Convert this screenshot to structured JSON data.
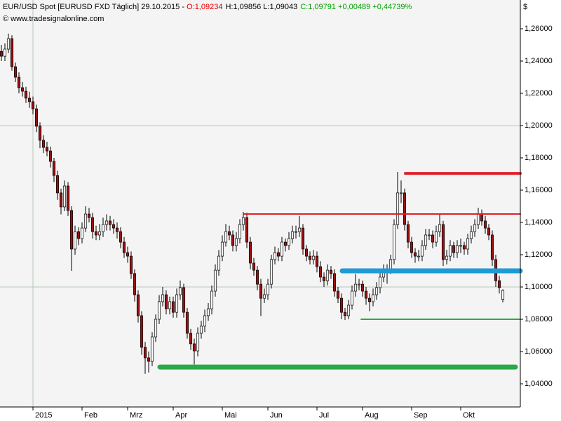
{
  "chart_data": {
    "type": "candlestick",
    "header": {
      "instrument": "EUR/USD Spot [EURUSD FXD  Täglich] 29.10.2015 - ",
      "open": "O:1,09234",
      "high_low": "H:1,09856 L:1,09043",
      "close": "C:1,09791 +0,00489 +0,44739%"
    },
    "copyright": "© www.tradesignalonline.com",
    "y_axis_label": "$",
    "categories": [
      null,
      null,
      null,
      null,
      null,
      null,
      null,
      null,
      null,
      "2015",
      null,
      null,
      null,
      null,
      null,
      null,
      null,
      null,
      null,
      null,
      null,
      null,
      null,
      "Feb",
      null,
      null,
      null,
      null,
      null,
      null,
      null,
      null,
      null,
      null,
      null,
      null,
      "Mrz",
      null,
      null,
      null,
      null,
      null,
      null,
      null,
      null,
      null,
      null,
      null,
      null,
      "Apr",
      null,
      null,
      null,
      null,
      null,
      null,
      null,
      null,
      null,
      null,
      null,
      null,
      null,
      "Mai",
      null,
      null,
      null,
      null,
      null,
      null,
      null,
      null,
      null,
      null,
      null,
      null,
      "Jun",
      null,
      null,
      null,
      null,
      null,
      null,
      null,
      null,
      null,
      null,
      null,
      null,
      null,
      "Jul",
      null,
      null,
      null,
      null,
      null,
      null,
      null,
      null,
      null,
      null,
      null,
      null,
      "Aug",
      null,
      null,
      null,
      null,
      null,
      null,
      null,
      null,
      null,
      null,
      null,
      null,
      null,
      "Sep",
      null,
      null,
      null,
      null,
      null,
      null,
      null,
      null,
      null,
      null,
      null,
      null,
      null,
      "Okt",
      null,
      null,
      null,
      null,
      null,
      null,
      null,
      null,
      null,
      null,
      null,
      null
    ],
    "ohlc": [
      [
        1.246,
        1.25,
        1.24,
        1.243
      ],
      [
        1.243,
        1.251,
        1.24,
        1.2474
      ],
      [
        1.2474,
        1.257,
        1.245,
        1.2539
      ],
      [
        1.2539,
        1.256,
        1.234,
        1.2365
      ],
      [
        1.2365,
        1.239,
        1.227,
        1.23
      ],
      [
        1.23,
        1.233,
        1.22,
        1.2235
      ],
      [
        1.2235,
        1.227,
        1.218,
        1.2213
      ],
      [
        1.2213,
        1.224,
        1.214,
        1.217
      ],
      [
        1.217,
        1.221,
        1.211,
        1.2148
      ],
      [
        1.2148,
        1.218,
        1.207,
        1.2104
      ],
      [
        1.2104,
        1.213,
        1.196,
        1.1996
      ],
      [
        1.1996,
        1.202,
        1.186,
        1.1909
      ],
      [
        1.1909,
        1.194,
        1.183,
        1.1865
      ],
      [
        1.1865,
        1.19,
        1.181,
        1.1843
      ],
      [
        1.1843,
        1.187,
        1.174,
        1.1778
      ],
      [
        1.1778,
        1.18,
        1.165,
        1.1691
      ],
      [
        1.1691,
        1.172,
        1.154,
        1.1583
      ],
      [
        1.1583,
        1.161,
        1.145,
        1.1496
      ],
      [
        1.1496,
        1.166,
        1.147,
        1.1626
      ],
      [
        1.1626,
        1.165,
        1.144,
        1.1474
      ],
      [
        1.1474,
        1.15,
        1.11,
        1.1235
      ],
      [
        1.1235,
        1.138,
        1.12,
        1.1343
      ],
      [
        1.1343,
        1.137,
        1.126,
        1.13
      ],
      [
        1.13,
        1.14,
        1.127,
        1.1365
      ],
      [
        1.1365,
        1.15,
        1.134,
        1.1452
      ],
      [
        1.1452,
        1.149,
        1.14,
        1.143
      ],
      [
        1.143,
        1.146,
        1.13,
        1.1343
      ],
      [
        1.1343,
        1.138,
        1.129,
        1.1322
      ],
      [
        1.1322,
        1.139,
        1.129,
        1.1343
      ],
      [
        1.1343,
        1.143,
        1.131,
        1.1387
      ],
      [
        1.1387,
        1.145,
        1.135,
        1.1409
      ],
      [
        1.1409,
        1.144,
        1.135,
        1.1387
      ],
      [
        1.1387,
        1.142,
        1.133,
        1.1365
      ],
      [
        1.1365,
        1.14,
        1.13,
        1.1343
      ],
      [
        1.1343,
        1.137,
        1.124,
        1.1278
      ],
      [
        1.1278,
        1.131,
        1.118,
        1.1213
      ],
      [
        1.1213,
        1.125,
        1.115,
        1.1191
      ],
      [
        1.1191,
        1.122,
        1.105,
        1.1083
      ],
      [
        1.1083,
        1.111,
        1.091,
        1.0952
      ],
      [
        1.0952,
        1.098,
        1.078,
        1.0822
      ],
      [
        1.0822,
        1.085,
        1.058,
        1.0626
      ],
      [
        1.0626,
        1.066,
        1.0462,
        1.0561
      ],
      [
        1.0561,
        1.06,
        1.047,
        1.0539
      ],
      [
        1.0539,
        1.072,
        1.051,
        1.0691
      ],
      [
        1.0691,
        1.083,
        1.066,
        1.08
      ],
      [
        1.08,
        1.095,
        1.077,
        1.0909
      ],
      [
        1.0909,
        1.1,
        1.088,
        1.0952
      ],
      [
        1.0952,
        1.098,
        1.083,
        1.0865
      ],
      [
        1.0865,
        1.094,
        1.083,
        1.0909
      ],
      [
        1.0909,
        1.094,
        1.081,
        1.0843
      ],
      [
        1.0843,
        1.099,
        1.081,
        1.0952
      ],
      [
        1.0952,
        1.104,
        1.092,
        1.0996
      ],
      [
        1.0996,
        1.102,
        1.081,
        1.0843
      ],
      [
        1.0843,
        1.087,
        1.068,
        1.0713
      ],
      [
        1.0713,
        1.074,
        1.061,
        1.0648
      ],
      [
        1.0648,
        1.068,
        1.052,
        1.0604
      ],
      [
        1.0604,
        1.075,
        1.057,
        1.0713
      ],
      [
        1.0713,
        1.079,
        1.068,
        1.0757
      ],
      [
        1.0757,
        1.086,
        1.072,
        1.0822
      ],
      [
        1.0822,
        1.09,
        1.079,
        1.0865
      ],
      [
        1.0865,
        1.101,
        1.083,
        1.0974
      ],
      [
        1.0974,
        1.114,
        1.094,
        1.1104
      ],
      [
        1.1104,
        1.123,
        1.107,
        1.1191
      ],
      [
        1.1191,
        1.132,
        1.116,
        1.1278
      ],
      [
        1.1278,
        1.139,
        1.125,
        1.1343
      ],
      [
        1.1343,
        1.138,
        1.129,
        1.1322
      ],
      [
        1.1322,
        1.135,
        1.122,
        1.1257
      ],
      [
        1.1257,
        1.134,
        1.122,
        1.13
      ],
      [
        1.13,
        1.142,
        1.127,
        1.1387
      ],
      [
        1.1387,
        1.1465,
        1.135,
        1.143
      ],
      [
        1.143,
        1.146,
        1.124,
        1.1278
      ],
      [
        1.1278,
        1.131,
        1.111,
        1.1148
      ],
      [
        1.1148,
        1.118,
        1.107,
        1.1104
      ],
      [
        1.1104,
        1.113,
        1.098,
        1.1017
      ],
      [
        1.1017,
        1.105,
        1.082,
        1.093
      ],
      [
        1.093,
        1.099,
        1.09,
        1.0952
      ],
      [
        1.0952,
        1.105,
        1.092,
        1.1017
      ],
      [
        1.1017,
        1.12,
        1.099,
        1.117
      ],
      [
        1.117,
        1.125,
        1.114,
        1.1213
      ],
      [
        1.1213,
        1.124,
        1.116,
        1.1191
      ],
      [
        1.1191,
        1.131,
        1.116,
        1.1278
      ],
      [
        1.1278,
        1.13,
        1.122,
        1.1257
      ],
      [
        1.1257,
        1.134,
        1.123,
        1.13
      ],
      [
        1.13,
        1.138,
        1.127,
        1.1343
      ],
      [
        1.1343,
        1.138,
        1.13,
        1.1343
      ],
      [
        1.1343,
        1.144,
        1.131,
        1.1365
      ],
      [
        1.1365,
        1.139,
        1.12,
        1.1235
      ],
      [
        1.1235,
        1.126,
        1.116,
        1.1191
      ],
      [
        1.1191,
        1.122,
        1.114,
        1.117
      ],
      [
        1.117,
        1.123,
        1.114,
        1.1191
      ],
      [
        1.1191,
        1.122,
        1.109,
        1.1126
      ],
      [
        1.1126,
        1.116,
        1.103,
        1.1061
      ],
      [
        1.1061,
        1.109,
        1.1,
        1.1039
      ],
      [
        1.1039,
        1.114,
        1.101,
        1.1104
      ],
      [
        1.1104,
        1.113,
        1.105,
        1.1083
      ],
      [
        1.1083,
        1.111,
        1.094,
        1.0974
      ],
      [
        1.0974,
        1.1,
        1.09,
        1.093
      ],
      [
        1.093,
        1.096,
        1.08,
        1.0843
      ],
      [
        1.0843,
        1.087,
        1.0795,
        1.0822
      ],
      [
        1.0822,
        1.092,
        1.08,
        1.0887
      ],
      [
        1.0887,
        1.101,
        1.086,
        1.0974
      ],
      [
        1.0974,
        1.108,
        1.094,
        1.1017
      ],
      [
        1.1017,
        1.105,
        1.098,
        1.1017
      ],
      [
        1.1017,
        1.104,
        1.094,
        1.0974
      ],
      [
        1.0974,
        1.1,
        1.089,
        1.093
      ],
      [
        1.093,
        1.096,
        1.085,
        1.0909
      ],
      [
        1.0909,
        1.099,
        1.088,
        1.0952
      ],
      [
        1.0952,
        1.103,
        1.092,
        1.0996
      ],
      [
        1.0996,
        1.109,
        1.096,
        1.1061
      ],
      [
        1.1061,
        1.114,
        1.103,
        1.1104
      ],
      [
        1.1104,
        1.114,
        1.102,
        1.1104
      ],
      [
        1.1104,
        1.12,
        1.108,
        1.117
      ],
      [
        1.117,
        1.142,
        1.114,
        1.1387
      ],
      [
        1.1387,
        1.1713,
        1.136,
        1.1583
      ],
      [
        1.1583,
        1.166,
        1.152,
        1.1583
      ],
      [
        1.1583,
        1.161,
        1.135,
        1.1387
      ],
      [
        1.1387,
        1.141,
        1.124,
        1.1278
      ],
      [
        1.1278,
        1.131,
        1.118,
        1.1213
      ],
      [
        1.1213,
        1.124,
        1.115,
        1.1191
      ],
      [
        1.1191,
        1.123,
        1.116,
        1.1191
      ],
      [
        1.1191,
        1.129,
        1.116,
        1.1257
      ],
      [
        1.1257,
        1.136,
        1.123,
        1.1322
      ],
      [
        1.1322,
        1.136,
        1.129,
        1.1322
      ],
      [
        1.1322,
        1.135,
        1.124,
        1.1278
      ],
      [
        1.1278,
        1.138,
        1.125,
        1.1343
      ],
      [
        1.1343,
        1.145,
        1.131,
        1.1387
      ],
      [
        1.1387,
        1.141,
        1.113,
        1.117
      ],
      [
        1.117,
        1.123,
        1.114,
        1.1191
      ],
      [
        1.1191,
        1.129,
        1.116,
        1.1257
      ],
      [
        1.1257,
        1.128,
        1.118,
        1.1213
      ],
      [
        1.1213,
        1.129,
        1.118,
        1.1257
      ],
      [
        1.1257,
        1.13,
        1.121,
        1.1257
      ],
      [
        1.1257,
        1.128,
        1.12,
        1.1235
      ],
      [
        1.1235,
        1.133,
        1.12,
        1.13
      ],
      [
        1.13,
        1.138,
        1.127,
        1.1343
      ],
      [
        1.1343,
        1.142,
        1.131,
        1.1387
      ],
      [
        1.1387,
        1.149,
        1.136,
        1.1452
      ],
      [
        1.1452,
        1.148,
        1.138,
        1.1409
      ],
      [
        1.1409,
        1.144,
        1.133,
        1.1365
      ],
      [
        1.1365,
        1.139,
        1.129,
        1.1322
      ],
      [
        1.1322,
        1.135,
        1.113,
        1.117
      ],
      [
        1.117,
        1.12,
        1.1,
        1.1039
      ],
      [
        1.1039,
        1.107,
        1.096,
        1.0996
      ],
      [
        1.09234,
        1.09856,
        1.09043,
        1.09791
      ]
    ],
    "up_color": "#ffffff",
    "down_color": "#9b1010",
    "xlim": [
      -0.4,
      148
    ],
    "ylim": [
      1.02565,
      1.27783
    ],
    "yticks": [
      {
        "value": 1.04,
        "label": "1,04000"
      },
      {
        "value": 1.06,
        "label": "1,06000"
      },
      {
        "value": 1.08,
        "label": "1,08000"
      },
      {
        "value": 1.1,
        "label": "1,10000"
      },
      {
        "value": 1.12,
        "label": "1,12000"
      },
      {
        "value": 1.14,
        "label": "1,14000"
      },
      {
        "value": 1.16,
        "label": "1,16000"
      },
      {
        "value": 1.18,
        "label": "1,18000"
      },
      {
        "value": 1.2,
        "label": "1,20000"
      },
      {
        "value": 1.22,
        "label": "1,22000"
      },
      {
        "value": 1.24,
        "label": "1,24000"
      },
      {
        "value": 1.26,
        "label": "1,26000"
      }
    ],
    "grid_lines": [
      1.1,
      1.2
    ],
    "levels": [
      {
        "value": 1.1704,
        "x": [
          115.2,
          148
        ],
        "color": "#e0202a",
        "width": 4
      },
      {
        "value": 1.1452,
        "x": [
          69.2,
          148
        ],
        "color": "#e0202a",
        "width": 2
      },
      {
        "value": 1.11,
        "x": [
          97.2,
          148
        ],
        "color": "#1e9ad6",
        "width": 7
      },
      {
        "value": 1.08,
        "x": [
          102.6,
          148
        ],
        "color": "#2aa84a",
        "width": 2
      },
      {
        "value": 1.0504,
        "x": [
          45.2,
          146.6
        ],
        "color": "#2aa84a",
        "width": 7
      }
    ]
  }
}
